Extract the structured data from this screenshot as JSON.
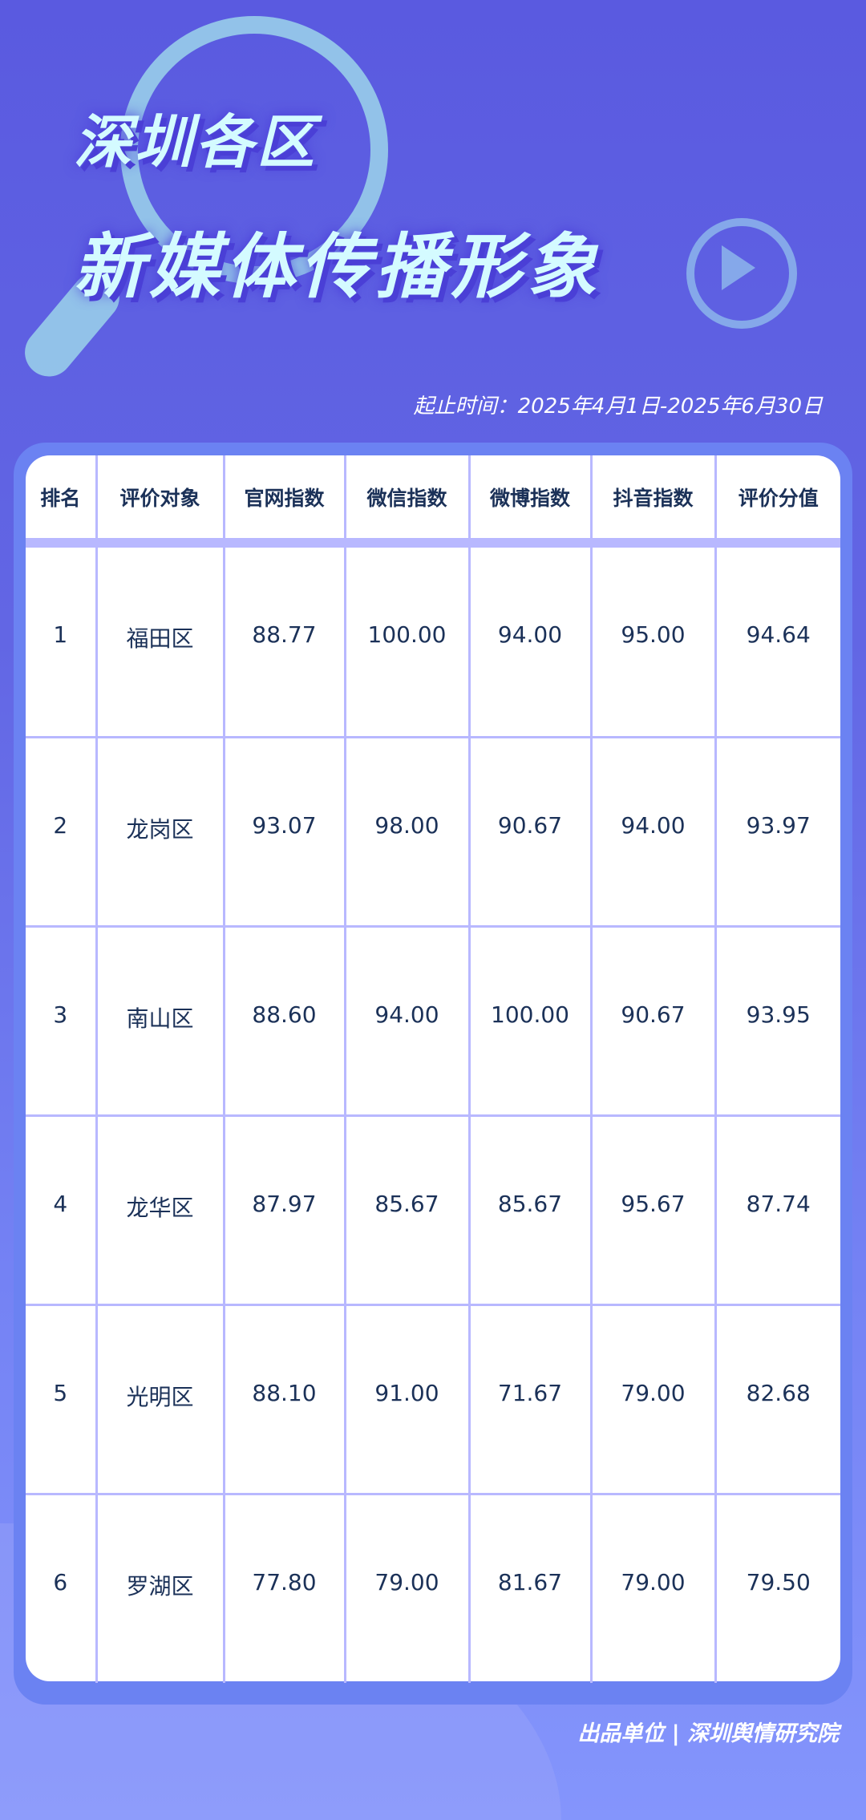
{
  "header": {
    "title_line1": "深圳各区",
    "title_line2": "新媒体传播形象",
    "date_range": "起止时间：2025年4月1日-2025年6月30日"
  },
  "table": {
    "columns": [
      "排名",
      "评价对象",
      "官网指数",
      "微信指数",
      "微博指数",
      "抖音指数",
      "评价分值"
    ],
    "rows": [
      [
        "1",
        "福田区",
        "88.77",
        "100.00",
        "94.00",
        "95.00",
        "94.64"
      ],
      [
        "2",
        "龙岗区",
        "93.07",
        "98.00",
        "90.67",
        "94.00",
        "93.97"
      ],
      [
        "3",
        "南山区",
        "88.60",
        "94.00",
        "100.00",
        "90.67",
        "93.95"
      ],
      [
        "4",
        "龙华区",
        "87.97",
        "85.67",
        "85.67",
        "95.67",
        "87.74"
      ],
      [
        "5",
        "光明区",
        "88.10",
        "91.00",
        "71.67",
        "79.00",
        "82.68"
      ],
      [
        "6",
        "罗湖区",
        "77.80",
        "79.00",
        "81.67",
        "79.00",
        "79.50"
      ]
    ]
  },
  "footer": {
    "publisher": "出品单位 | 深圳舆情研究院"
  },
  "colors": {
    "background": "#5a5ae0",
    "panel": "#6b82f2",
    "grid": "#b8b8ff",
    "text": "#1b3158",
    "title": "#d4fbff"
  }
}
